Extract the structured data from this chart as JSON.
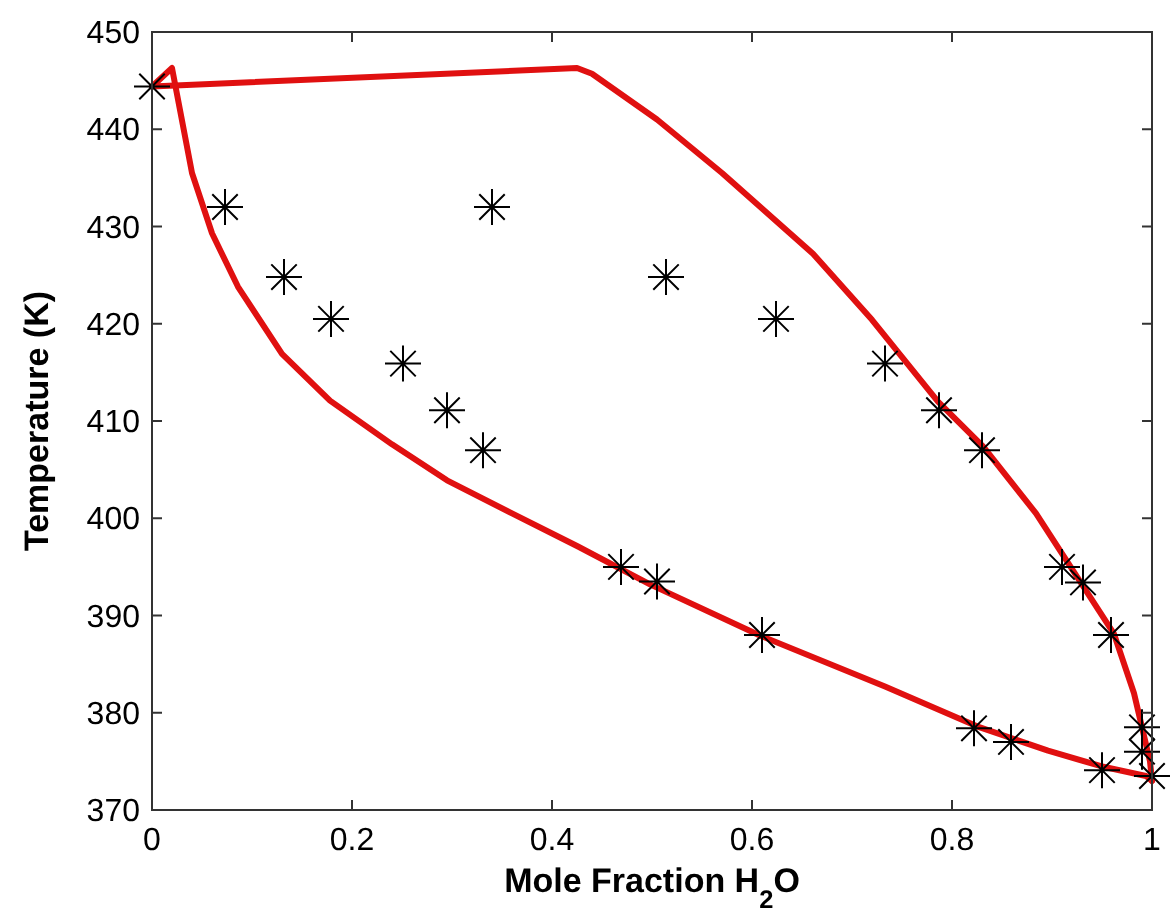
{
  "chart_data": {
    "type": "line",
    "xlabel": "Mole Fraction H$_{2}$O",
    "ylabel": "Temperature (K)",
    "xlim": [
      0,
      1
    ],
    "ylim": [
      370,
      450
    ],
    "xticks": [
      0,
      0.2,
      0.4,
      0.6,
      0.8,
      1
    ],
    "yticks": [
      370,
      380,
      390,
      400,
      410,
      420,
      430,
      440,
      450
    ],
    "grid": false,
    "series": [
      {
        "color": "#e01010",
        "marker": "none",
        "line_style": "solid",
        "x": [
          0,
          0.02,
          0.025,
          0.04,
          0.06,
          0.086,
          0.13,
          0.178,
          0.24,
          0.295,
          0.36,
          0.426,
          0.498,
          0.609,
          0.733,
          0.825,
          0.896,
          0.949,
          0.994,
          1
        ],
        "values": [
          444.4,
          446.3,
          443.6,
          435.5,
          429.3,
          423.8,
          416.9,
          412.1,
          407.6,
          403.9,
          400.5,
          397.1,
          393.2,
          387.9,
          382.7,
          378.6,
          376.1,
          374.5,
          373.5,
          373
        ]
      },
      {
        "color": "#e01010",
        "marker": "none",
        "line_style": "solid",
        "x": [
          0,
          0.425,
          0.44,
          0.505,
          0.57,
          0.661,
          0.72,
          0.786,
          0.831,
          0.884,
          0.923,
          0.962,
          0.982,
          0.998,
          1
        ],
        "values": [
          444.4,
          446.3,
          445.7,
          441,
          435.5,
          427.2,
          420.4,
          412,
          407.4,
          400.5,
          394.3,
          388.1,
          382,
          375,
          373
        ]
      },
      {
        "type": "scatter",
        "color": "#000000",
        "marker": "cross",
        "x": [
          0,
          0.073,
          0.132,
          0.179,
          0.251,
          0.295,
          0.331,
          0.34,
          0.469,
          0.505,
          0.514,
          0.61,
          0.624,
          0.733,
          0.787,
          0.822,
          0.83,
          0.859,
          0.91,
          0.931,
          0.95,
          0.959,
          0.99,
          0.99,
          1
        ],
        "values": [
          444.4,
          432,
          424.8,
          420.5,
          415.9,
          411.1,
          407,
          432,
          395,
          393.5,
          424.8,
          388,
          420.5,
          415.9,
          411.1,
          378.4,
          407,
          377,
          395,
          393.4,
          374.1,
          388,
          378.5,
          376,
          373.5
        ]
      }
    ]
  }
}
